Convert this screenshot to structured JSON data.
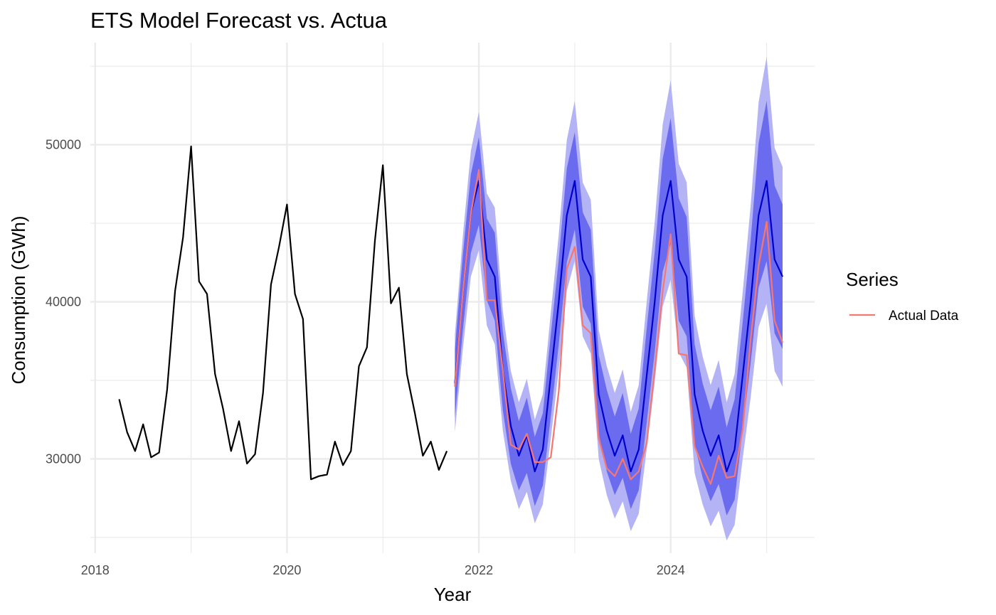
{
  "chart_data": {
    "type": "line",
    "title": "ETS Model Forecast vs. Actua",
    "xlabel": "Year",
    "ylabel": "Consumption (GWh)",
    "xlim": [
      2017.95,
      2025.5
    ],
    "ylim": [
      24000,
      56500
    ],
    "x_ticks": [
      2018,
      2020,
      2022,
      2024
    ],
    "x_tick_labels": [
      "2018",
      "2020",
      "2022",
      "2024"
    ],
    "y_ticks": [
      30000,
      40000,
      50000
    ],
    "y_tick_labels": [
      "30000",
      "40000",
      "50000"
    ],
    "grid": true,
    "legend": {
      "title": "Series",
      "placement": "right",
      "entries": [
        {
          "label": "Actual Data",
          "color": "#F8766D"
        }
      ]
    },
    "colors": {
      "history": "#000000",
      "forecast": "#0000CD",
      "band80": "#6B6BF0",
      "band95": "#B3B3F5",
      "actual": "#F8766D",
      "grid": "#EBEBEB"
    },
    "history": {
      "start": 2018.25,
      "step": 0.08333,
      "values": [
        33800,
        31700,
        30500,
        32200,
        30100,
        30400,
        34400,
        40700,
        44100,
        49900,
        41300,
        40500,
        35400,
        33200,
        30500,
        32400,
        29700,
        30300,
        34200,
        41100,
        43500,
        46200,
        40500,
        38900,
        28700,
        28900,
        29000,
        31100,
        29600,
        30500,
        35900,
        37100,
        43900,
        48700,
        39900,
        40900,
        35400,
        32900,
        30200,
        31100,
        29300,
        30500
      ]
    },
    "forecast": {
      "start": 2021.75,
      "step": 0.08333,
      "values": [
        34800,
        40600,
        45600,
        47700,
        42700,
        41600,
        35600,
        32100,
        30200,
        31500,
        29200,
        30600,
        35300,
        40000,
        45500,
        47700,
        42700,
        41600,
        34100,
        31800,
        30200,
        31500,
        29200,
        30600,
        35300,
        40000,
        45500,
        47700,
        42700,
        41600,
        34100,
        31800,
        30200,
        31500,
        29200,
        30600,
        35300,
        40000,
        45500,
        47700,
        42700,
        41600
      ],
      "lo80": [
        32600,
        38200,
        43100,
        44900,
        40100,
        38800,
        33100,
        29700,
        28000,
        29100,
        27000,
        28300,
        32700,
        37300,
        42500,
        44600,
        39700,
        38600,
        31600,
        29200,
        27700,
        28800,
        26800,
        28000,
        32300,
        36800,
        41900,
        43700,
        38800,
        37800,
        30900,
        28800,
        27300,
        28400,
        26400,
        27400,
        31900,
        36100,
        40900,
        42600,
        38000,
        37000
      ],
      "hi80": [
        37000,
        43000,
        48100,
        50500,
        45300,
        44400,
        38100,
        34500,
        32400,
        33900,
        31400,
        32900,
        37900,
        42700,
        48500,
        50800,
        45700,
        44600,
        36600,
        34400,
        32700,
        34200,
        31600,
        33200,
        38300,
        43200,
        49100,
        51700,
        46600,
        45400,
        37300,
        34800,
        33100,
        34600,
        32000,
        33800,
        38700,
        43900,
        50100,
        52800,
        47400,
        46200
      ],
      "lo95": [
        31700,
        37000,
        41600,
        43300,
        38500,
        37300,
        31800,
        28600,
        26800,
        27900,
        25900,
        27100,
        31300,
        35700,
        40700,
        42600,
        37800,
        36700,
        30000,
        27700,
        26200,
        27300,
        25400,
        26500,
        30600,
        34900,
        39700,
        41400,
        36800,
        35800,
        29100,
        27100,
        25700,
        26700,
        24800,
        25800,
        30000,
        33900,
        38400,
        39900,
        35600,
        34600
      ],
      "hi95": [
        37900,
        44200,
        49600,
        52100,
        46900,
        46000,
        39400,
        35600,
        33600,
        35100,
        32500,
        34100,
        39300,
        44300,
        50300,
        52800,
        47600,
        46500,
        38200,
        35900,
        34200,
        35700,
        33000,
        34700,
        40000,
        45100,
        51300,
        54100,
        48800,
        47600,
        39100,
        36500,
        34700,
        36300,
        33600,
        35400,
        40600,
        46100,
        52700,
        55600,
        49800,
        48600
      ]
    },
    "actual": {
      "name": "Actual Data",
      "start": 2021.75,
      "step": 0.08333,
      "values": [
        34600,
        40600,
        45600,
        48400,
        40100,
        40100,
        35600,
        30900,
        30600,
        31600,
        29800,
        29800,
        30100,
        34300,
        42100,
        43500,
        38500,
        38000,
        31300,
        29400,
        28900,
        30000,
        28700,
        29200,
        31000,
        35700,
        40700,
        44300,
        36700,
        36600,
        30800,
        29500,
        28400,
        30200,
        28800,
        28900,
        31900,
        37600,
        42300,
        45100,
        38800,
        37400
      ]
    }
  }
}
